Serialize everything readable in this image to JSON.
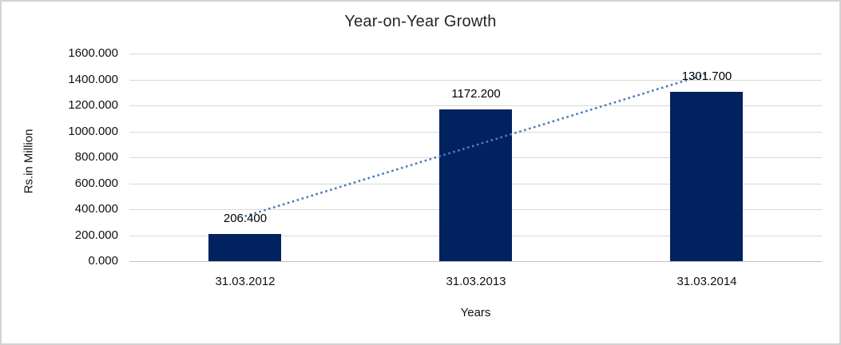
{
  "frame": {
    "border_color": "#d3d3d3",
    "background": "#ffffff"
  },
  "chart_data": {
    "type": "bar",
    "title": "Year-on-Year Growth",
    "categories": [
      "31.03.2012",
      "31.03.2013",
      "31.03.2014"
    ],
    "values": [
      206.4,
      1172.2,
      1301.7
    ],
    "value_labels": [
      "206.400",
      "1172.200",
      "1301.700"
    ],
    "xlabel": "Years",
    "ylabel": "Rs.in Million",
    "ylim": [
      0,
      1600
    ],
    "ytick_step": 200,
    "ytick_labels": [
      "0.000",
      "200.000",
      "400.000",
      "600.000",
      "800.000",
      "1000.000",
      "1200.000",
      "1400.000",
      "1600.000"
    ],
    "grid": true,
    "legend": "none",
    "bar_color": "#02215f",
    "trendline": {
      "type": "linear",
      "style": "dotted",
      "color": "#4a7ebb"
    },
    "gridline_color": "#d9d9d9",
    "axis_line_color": "#bfbfbf",
    "text_color": "#111111"
  }
}
